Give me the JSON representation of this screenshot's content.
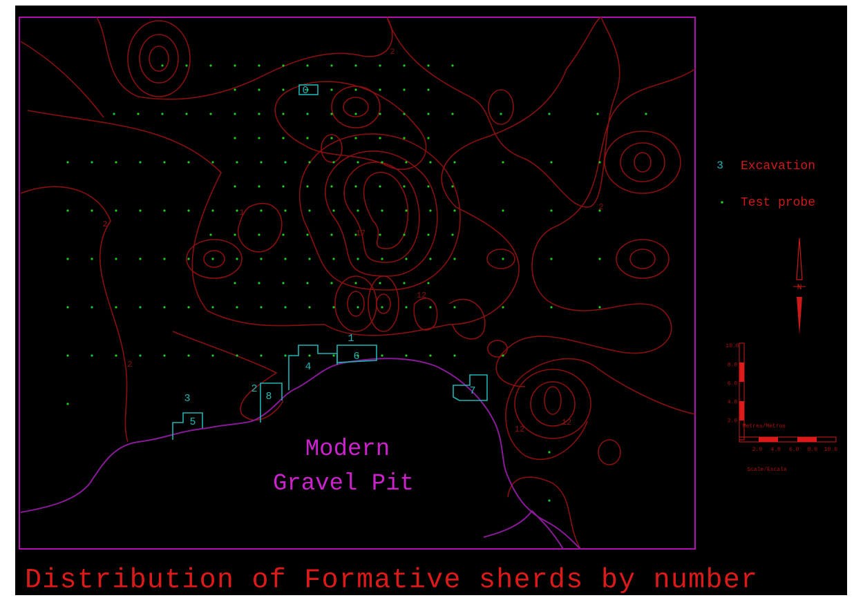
{
  "title": "Distribution of Formative sherds by number",
  "gravel_pit_label": [
    "Modern",
    "Gravel Pit"
  ],
  "legend": {
    "excavation": {
      "symbol": "3",
      "label": "Excavation"
    },
    "test_probe": {
      "label": "Test probe"
    }
  },
  "north_label": "N",
  "excavations": [
    "0",
    "1",
    "6",
    "4",
    "2",
    "8",
    "3",
    "5",
    "7"
  ],
  "contour_labels": [
    "2",
    "2",
    "2",
    "2",
    "12",
    "12",
    "17",
    "12",
    "1"
  ],
  "scale": {
    "y_ticks": [
      "10.0",
      "8.0",
      "6.0",
      "4.0",
      "2.0"
    ],
    "x_ticks": [
      "2.0",
      "4.0",
      "6.0",
      "8.0",
      "10.0"
    ],
    "unit": "Metres/Metros",
    "caption": "Scale/Escala"
  }
}
